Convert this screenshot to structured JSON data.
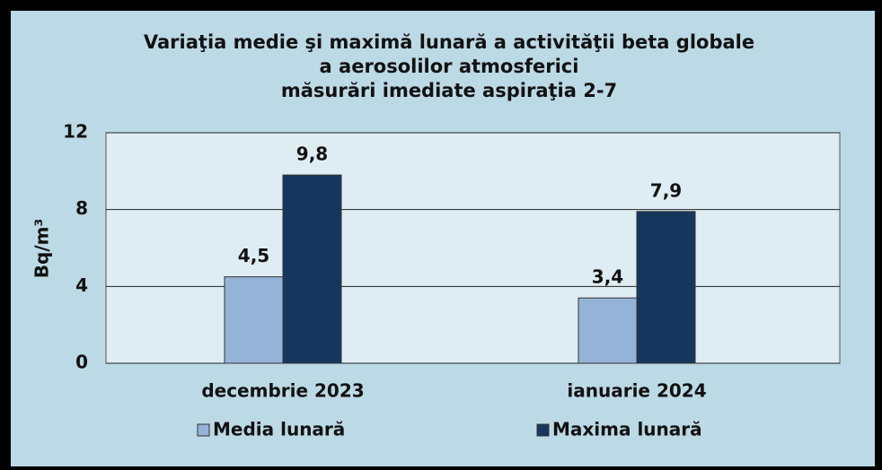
{
  "chart_data": {
    "type": "bar",
    "title": [
      "Variaţia medie şi maximă lunară a activităţii beta globale",
      "a aerosolilor atmosferici",
      "măsurări imediate aspiraţia 2-7"
    ],
    "y_label": "Bq/m³",
    "categories": [
      "decembrie 2023",
      "ianuarie 2024"
    ],
    "series": [
      {
        "name": "Media lunară",
        "color": "#95b3d7",
        "values": [
          4.5,
          3.4
        ],
        "value_labels": [
          "4,5",
          "3,4"
        ]
      },
      {
        "name": "Maxima lunară",
        "color": "#17365d",
        "values": [
          9.8,
          7.9
        ],
        "value_labels": [
          "9,8",
          "7,9"
        ]
      }
    ],
    "ylim": [
      0,
      12
    ],
    "yticks": [
      0,
      4,
      8,
      12
    ],
    "grid": true
  }
}
